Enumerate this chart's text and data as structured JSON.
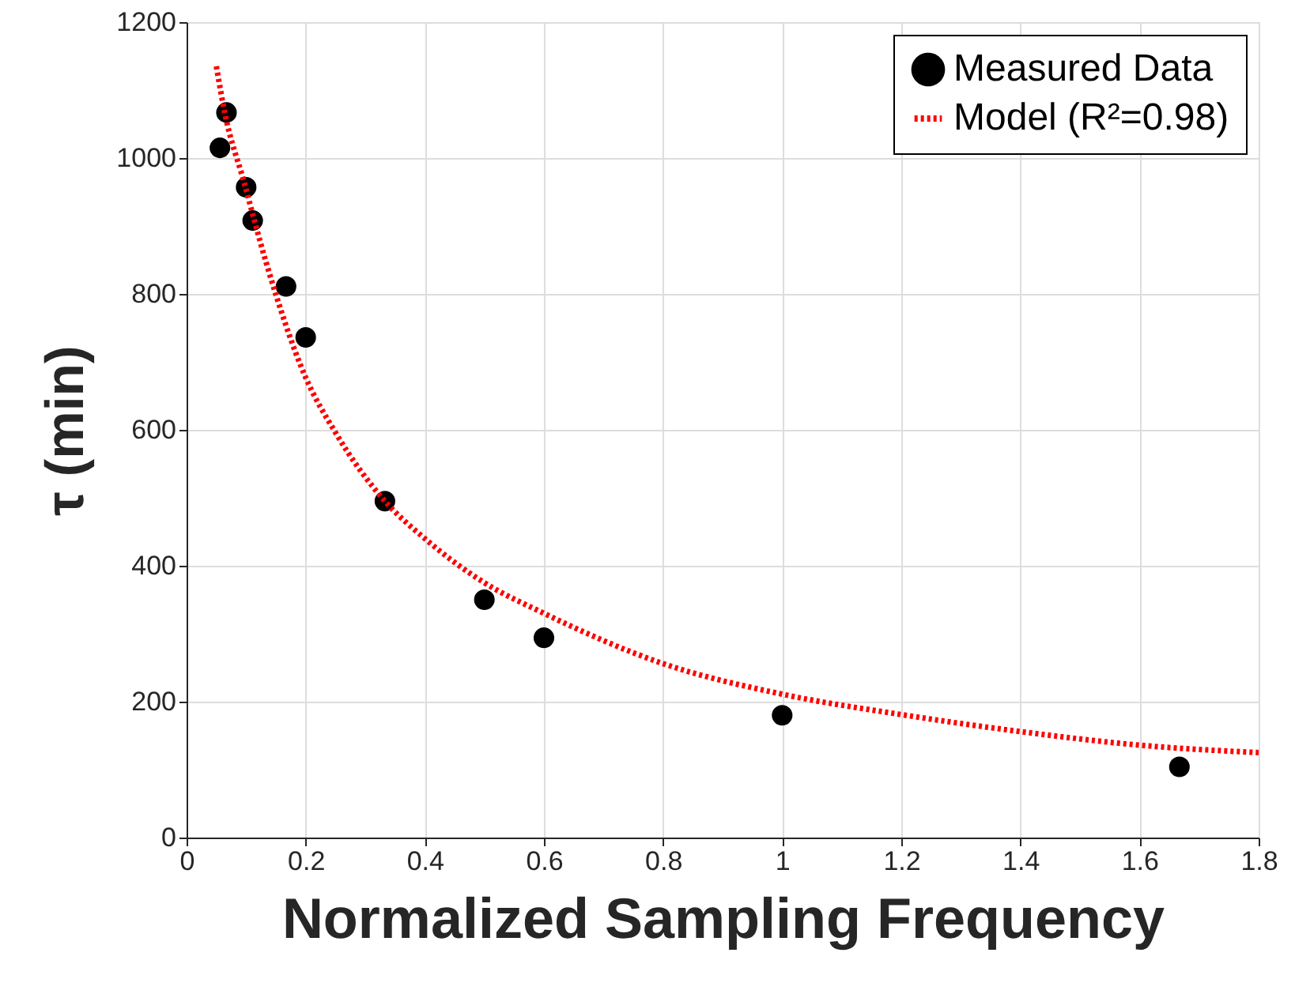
{
  "chart_data": {
    "type": "scatter",
    "xlabel": "Normalized Sampling Frequency",
    "ylabel": "τ (min)",
    "xlim": [
      0,
      1.8
    ],
    "xticks": [
      0,
      0.2,
      0.4,
      0.6,
      0.8,
      1,
      1.2,
      1.4,
      1.6,
      1.8
    ],
    "ylim": [
      0,
      1200
    ],
    "yticks": [
      0,
      200,
      400,
      600,
      800,
      1000,
      1200
    ],
    "grid": true,
    "legend": "top right",
    "series": [
      {
        "name": "Measured Data",
        "color": "#000000",
        "marker": "circle",
        "x": [
          0.056,
          0.067,
          0.1,
          0.111,
          0.167,
          0.2,
          0.333,
          0.5,
          0.6,
          1,
          1.667
        ],
        "values": [
          1015,
          1067,
          957,
          908,
          811,
          736,
          495,
          350,
          294,
          180,
          104
        ]
      },
      {
        "name": "Model (R²=0.98)",
        "type": "line",
        "color": "#ff0000",
        "line_style": "dotted",
        "marker": "none",
        "x": [
          0.05,
          0.064,
          0.096,
          0.134,
          0.2,
          0.25,
          0.333,
          0.4,
          0.5,
          0.6,
          0.8,
          1.0,
          1.2,
          1.4,
          1.6,
          1.8
        ],
        "values": [
          1135,
          1067,
          966,
          845,
          677,
          596,
          495,
          440,
          375,
          330,
          256,
          211,
          181,
          156,
          136,
          125
        ]
      }
    ]
  }
}
